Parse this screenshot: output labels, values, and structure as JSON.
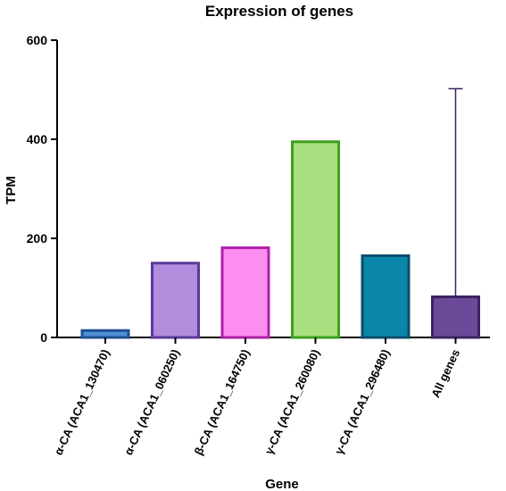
{
  "chart_data": {
    "type": "bar",
    "title": "Expression of genes",
    "xlabel": "Gene",
    "ylabel": "TPM",
    "ylim": [
      0,
      600
    ],
    "yticks": [
      0,
      200,
      400,
      600
    ],
    "categories": [
      "α-CA (ACA1_130470)",
      "α-CA (ACA1_060250)",
      "β-CA (ACA1_164750)",
      "γ-CA (ACA1_260080)",
      "γ-CA (ACA1_296480)",
      "All genes"
    ],
    "values": [
      14,
      150,
      181,
      395,
      165,
      82
    ],
    "error_upper": [
      null,
      null,
      null,
      null,
      null,
      502
    ],
    "colors": {
      "fill": [
        "#4f8fd6",
        "#b18ddd",
        "#fb8ef0",
        "#a9e07f",
        "#0a86aa",
        "#6b4a99"
      ],
      "stroke": [
        "#1e4f8f",
        "#5a3a9a",
        "#b020a8",
        "#3ea020",
        "#0a4f6a",
        "#3a2460"
      ]
    },
    "grid": false,
    "legend": "none"
  }
}
